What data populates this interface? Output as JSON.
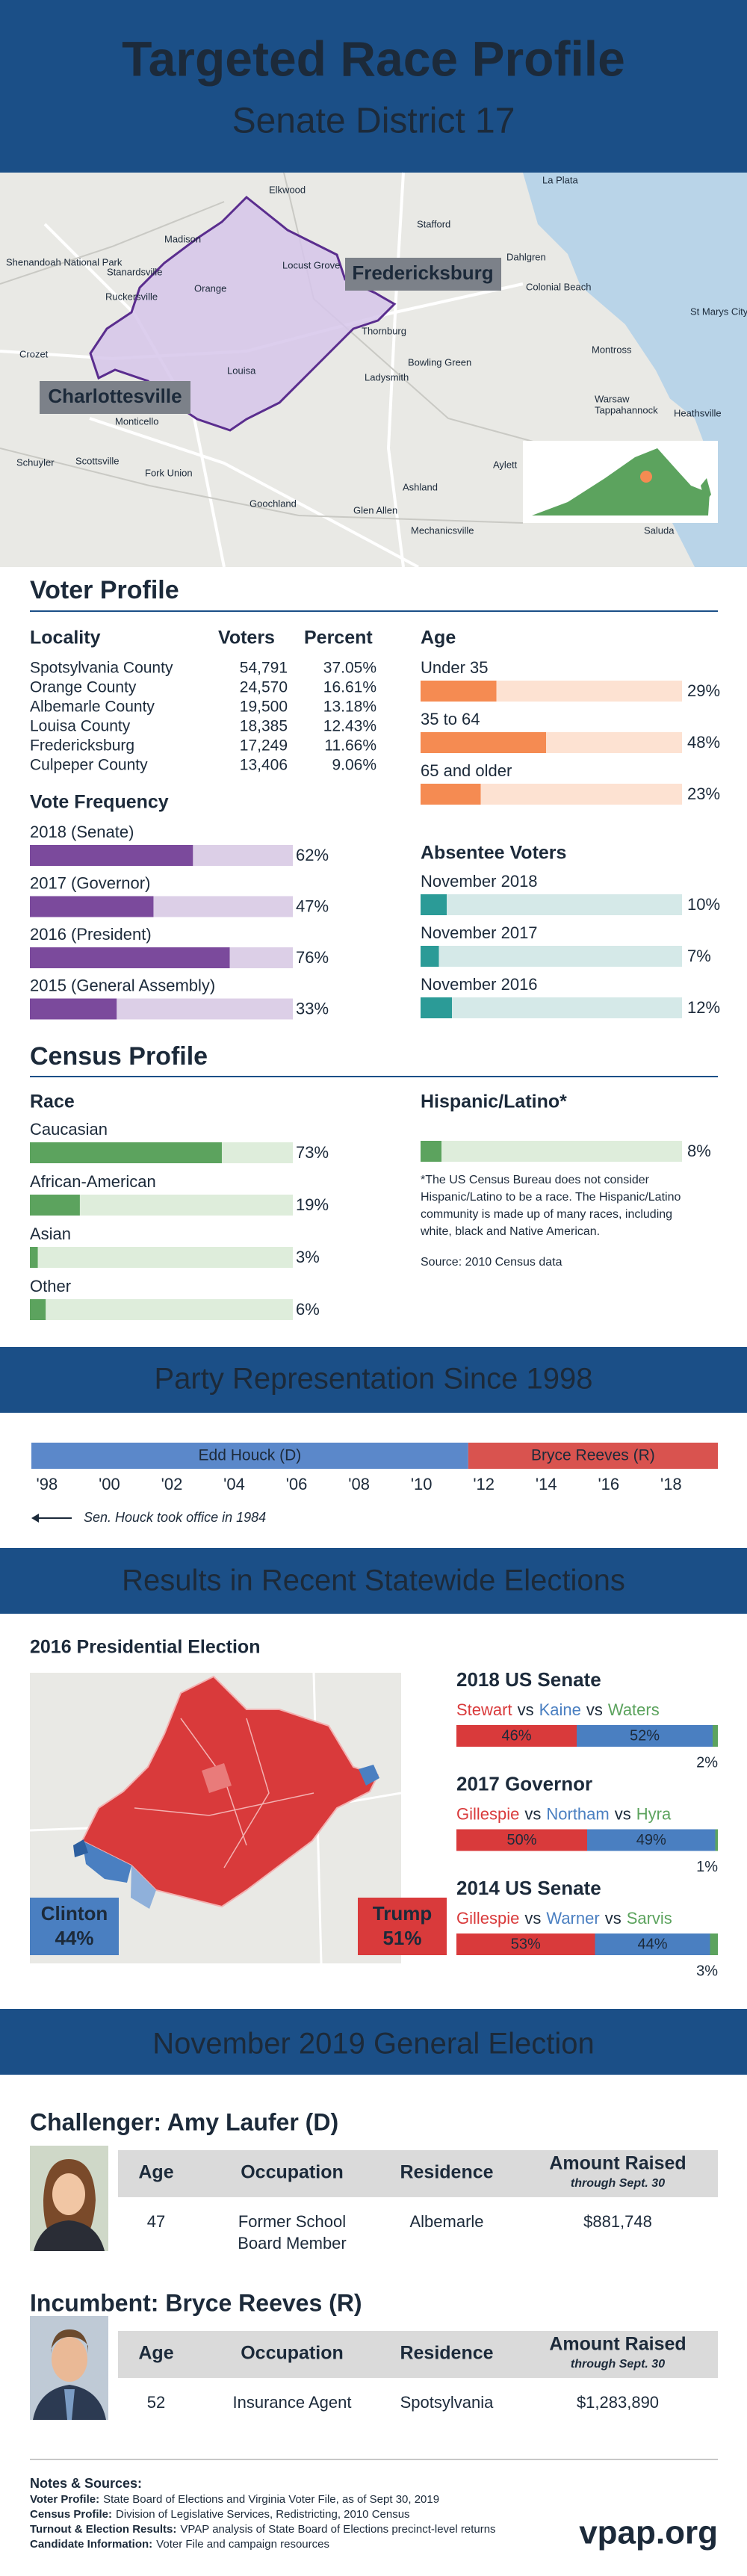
{
  "header": {
    "title": "Targeted Race Profile",
    "subtitle": "Senate District 17"
  },
  "district_map": {
    "labels": [
      "Fredericksburg",
      "Charlottesville"
    ],
    "places": [
      "Elkwood",
      "Stafford",
      "Madison",
      "Stanardsville",
      "Shenandoah National Park",
      "Ruckersville",
      "Orange",
      "Locust Grove",
      "Dahlgren",
      "Colonial Beach",
      "Montross",
      "Thornburg",
      "Bowling Green",
      "Ladysmith",
      "Louisa",
      "Crozet",
      "Monticello",
      "Scottsville",
      "Fork Union",
      "Schuyler",
      "Goochland",
      "Glen Allen",
      "Ashland",
      "Mechanicsville",
      "Warsaw",
      "Tappahannock",
      "Heathsville",
      "La Plata",
      "St Marys City",
      "Aylett",
      "Saluda"
    ]
  },
  "voter_profile": {
    "title": "Voter Profile",
    "locality": {
      "columns": [
        "Locality",
        "Voters",
        "Percent"
      ],
      "rows": [
        [
          "Spotsylvania County",
          "54,791",
          "37.05%"
        ],
        [
          "Orange County",
          "24,570",
          "16.61%"
        ],
        [
          "Albemarle County",
          "19,500",
          "13.18%"
        ],
        [
          "Louisa County",
          "18,385",
          "12.43%"
        ],
        [
          "Fredericksburg",
          "17,249",
          "11.66%"
        ],
        [
          "Culpeper County",
          "13,406",
          "9.06%"
        ]
      ]
    },
    "age": {
      "title": "Age",
      "xlim": [
        0,
        100
      ],
      "color": "#f58b52",
      "track": "#fde2d2",
      "items": [
        {
          "label": "Under 35",
          "value": 29,
          "value_label": "29%"
        },
        {
          "label": "35 to 64",
          "value": 48,
          "value_label": "48%"
        },
        {
          "label": "65 and older",
          "value": 23,
          "value_label": "23%"
        }
      ]
    },
    "vote_frequency": {
      "title": "Vote Frequency",
      "xlim": [
        0,
        100
      ],
      "color": "#7b4a9c",
      "track": "#dccfe7",
      "items": [
        {
          "label": "2018 (Senate)",
          "value": 62,
          "value_label": "62%"
        },
        {
          "label": "2017 (Governor)",
          "value": 47,
          "value_label": "47%"
        },
        {
          "label": "2016 (President)",
          "value": 76,
          "value_label": "76%"
        },
        {
          "label": "2015 (General Assembly)",
          "value": 33,
          "value_label": "33%"
        }
      ]
    },
    "absentee": {
      "title": "Absentee Voters",
      "xlim": [
        0,
        100
      ],
      "color": "#2b9b97",
      "track": "#d5e9e8",
      "items": [
        {
          "label": "November 2018",
          "value": 10,
          "value_label": "10%"
        },
        {
          "label": "November 2017",
          "value": 7,
          "value_label": "7%"
        },
        {
          "label": "November 2016",
          "value": 12,
          "value_label": "12%"
        }
      ]
    }
  },
  "census_profile": {
    "title": "Census Profile",
    "race": {
      "title": "Race",
      "xlim": [
        0,
        100
      ],
      "color": "#5ca35e",
      "track": "#deeddb",
      "items": [
        {
          "label": "Caucasian",
          "value": 73,
          "value_label": "73%"
        },
        {
          "label": "African-American",
          "value": 19,
          "value_label": "19%"
        },
        {
          "label": "Asian",
          "value": 3,
          "value_label": "3%"
        },
        {
          "label": "Other",
          "value": 6,
          "value_label": "6%"
        }
      ]
    },
    "hispanic": {
      "title": "Hispanic/Latino*",
      "xlim": [
        0,
        100
      ],
      "color": "#5ca35e",
      "track": "#deeddb",
      "value": 8,
      "value_label": "8%",
      "note_lines": [
        "*The US Census Bureau does not consider",
        "Hispanic/Latino to be a race. The Hispanic/Latino",
        "community is made up of many races, including",
        "white, black and Native American."
      ],
      "source": "Source: 2010 Census data"
    }
  },
  "party_representation": {
    "title": "Party Representation Since 1998",
    "xlim": [
      1998,
      2020
    ],
    "xticks": [
      {
        "value": 1998,
        "label": "'98"
      },
      {
        "value": 2000,
        "label": "'00"
      },
      {
        "value": 2002,
        "label": "'02"
      },
      {
        "value": 2004,
        "label": "'04"
      },
      {
        "value": 2006,
        "label": "'06"
      },
      {
        "value": 2008,
        "label": "'08"
      },
      {
        "value": 2010,
        "label": "'10"
      },
      {
        "value": 2012,
        "label": "'12"
      },
      {
        "value": 2014,
        "label": "'14"
      },
      {
        "value": 2016,
        "label": "'16"
      },
      {
        "value": 2018,
        "label": "'18"
      }
    ],
    "segments": [
      {
        "name": "Edd Houck (D)",
        "start": 1998,
        "end": 2012,
        "color": "#5b88ca"
      },
      {
        "name": "Bryce Reeves (R)",
        "start": 2012,
        "end": 2020,
        "color": "#d9534f"
      }
    ],
    "note": "Sen. Houck took office in 1984"
  },
  "statewide_results": {
    "title": "Results in Recent Statewide Elections",
    "presidential": {
      "title": "2016 Presidential Election",
      "candidates": [
        {
          "name": "Clinton",
          "result": "44%",
          "color": "#4a7fc1"
        },
        {
          "name": "Trump",
          "result": "51%",
          "color": "#d93a3b"
        }
      ]
    },
    "connector": "vs",
    "xlim": [
      0,
      100
    ],
    "races": [
      {
        "title": "2018 US Senate",
        "candidates": [
          {
            "name": "Stewart",
            "value": 46,
            "value_label": "46%",
            "color": "#d93a3b"
          },
          {
            "name": "Kaine",
            "value": 52,
            "value_label": "52%",
            "color": "#4a7fc1"
          },
          {
            "name": "Waters",
            "value": 2,
            "value_label": "2%",
            "color": "#5ca35e"
          }
        ]
      },
      {
        "title": "2017 Governor",
        "candidates": [
          {
            "name": "Gillespie",
            "value": 50,
            "value_label": "50%",
            "color": "#d93a3b"
          },
          {
            "name": "Northam",
            "value": 49,
            "value_label": "49%",
            "color": "#4a7fc1"
          },
          {
            "name": "Hyra",
            "value": 1,
            "value_label": "1%",
            "color": "#5ca35e"
          }
        ]
      },
      {
        "title": "2014 US Senate",
        "candidates": [
          {
            "name": "Gillespie",
            "value": 53,
            "value_label": "53%",
            "color": "#d93a3b"
          },
          {
            "name": "Warner",
            "value": 44,
            "value_label": "44%",
            "color": "#4a7fc1"
          },
          {
            "name": "Sarvis",
            "value": 3,
            "value_label": "3%",
            "color": "#5ca35e"
          }
        ]
      }
    ]
  },
  "general_election": {
    "title": "November 2019 General Election",
    "columns": [
      "Age",
      "Occupation",
      "Residence",
      "Amount Raised"
    ],
    "raised_note": "through Sept. 30",
    "candidates": [
      {
        "heading": "Challenger: Amy Laufer (D)",
        "age": "47",
        "occupation": [
          "Former School",
          "Board Member"
        ],
        "residence": "Albemarle",
        "raised": "$881,748"
      },
      {
        "heading": "Incumbent: Bryce Reeves (R)",
        "age": "52",
        "occupation": [
          "Insurance Agent"
        ],
        "residence": "Spotsylvania",
        "raised": "$1,283,890"
      }
    ]
  },
  "notes": {
    "title": "Notes & Sources:",
    "items": [
      {
        "label": "Voter Profile:",
        "text": "State Board of Elections and Virginia Voter File, as of Sept 30, 2019"
      },
      {
        "label": "Census Profile:",
        "text": "Division of Legislative Services, Redistricting, 2010 Census"
      },
      {
        "label": "Turnout & Election Results:",
        "text": "VPAP analysis of State Board of Elections precinct-level returns"
      },
      {
        "label": "Candidate Information:",
        "text": "Voter File and campaign resources"
      }
    ],
    "brand": "vpap.org"
  }
}
